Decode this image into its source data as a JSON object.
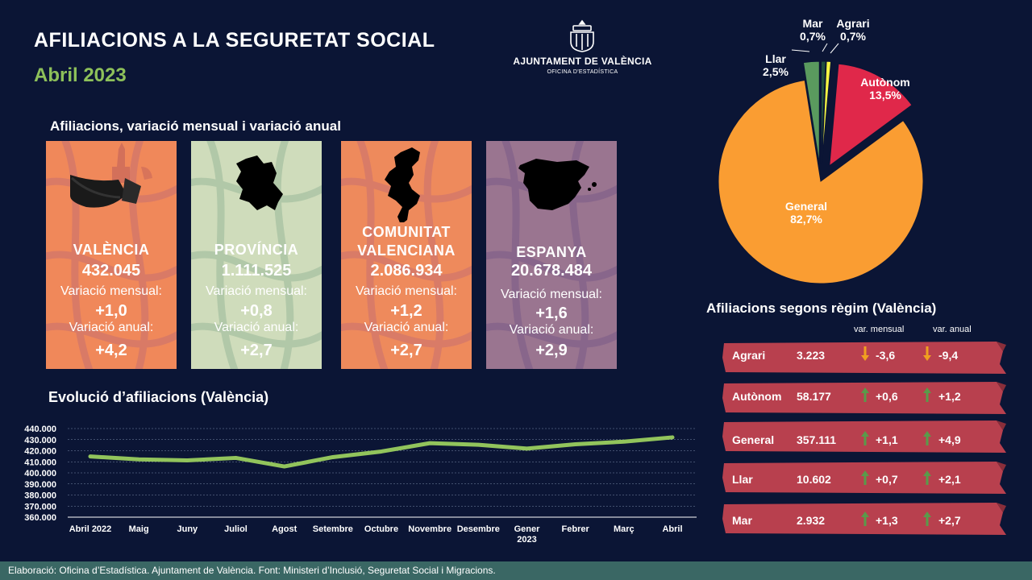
{
  "header": {
    "title": "AFILIACIONS  A LA SEGURETAT SOCIAL",
    "subtitle": "Abril 2023"
  },
  "logo": {
    "line1": "AJUNTAMENT DE VALÈNCIA",
    "line2": "OFICINA D'ESTADÍSTICA",
    "icon": "city-coat-of-arms-icon"
  },
  "cards_section": {
    "title": "Afiliacions, variació mensual i variació anual",
    "monthly_label": "Variació mensual:",
    "annual_label": "Variació anual:",
    "cards": [
      {
        "name": "VALÈNCIA",
        "name2": "",
        "value": "432.045",
        "monthly": "+1,0",
        "annual": "+4,2",
        "color": "#f0885a",
        "icon": "city-skyline-icon"
      },
      {
        "name": "PROVÍNCIA",
        "name2": "",
        "value": "1.111.525",
        "monthly": "+0,8",
        "annual": "+2,7",
        "color": "#cfdcbb",
        "icon": "province-map-icon"
      },
      {
        "name": "COMUNITAT",
        "name2": "VALENCIANA",
        "value": "2.086.934",
        "monthly": "+1,2",
        "annual": "+2,7",
        "color": "#ee8a5c",
        "icon": "region-map-icon"
      },
      {
        "name": "ESPANYA",
        "name2": "",
        "value": "20.678.484",
        "monthly": "+1,6",
        "annual": "+2,9",
        "color": "#9a7590",
        "icon": "spain-map-icon"
      }
    ]
  },
  "evolution": {
    "title": "Evolució d’afiliacions (València)"
  },
  "chart_data": [
    {
      "type": "line",
      "title": "Evolució d’afiliacions (València)",
      "categories": [
        "Abril 2022",
        "Maig",
        "Juny",
        "Juliol",
        "Agost",
        "Setembre",
        "Octubre",
        "Novembre",
        "Desembre",
        "Gener 2023",
        "Febrer",
        "Març",
        "Abril"
      ],
      "category_lines": [
        [
          "Abril 2022"
        ],
        [
          "Maig"
        ],
        [
          "Juny"
        ],
        [
          "Juliol"
        ],
        [
          "Agost"
        ],
        [
          "Setembre"
        ],
        [
          "Octubre"
        ],
        [
          "Novembre"
        ],
        [
          "Desembre"
        ],
        [
          "Gener",
          "2023"
        ],
        [
          "Febrer"
        ],
        [
          "Març"
        ],
        [
          "Abril"
        ]
      ],
      "values": [
        414800,
        412200,
        411300,
        413500,
        405800,
        414200,
        419300,
        426800,
        425400,
        421900,
        425800,
        428200,
        432045
      ],
      "y_ticks": [
        "360.000",
        "370.000",
        "380.000",
        "390.000",
        "400.000",
        "410.000",
        "420.000",
        "430.000",
        "440.000"
      ],
      "ylim": [
        360000,
        440000
      ],
      "grid": true,
      "line_color": "#92c45c"
    },
    {
      "type": "pie",
      "title": "",
      "slices": [
        {
          "label": "Mar",
          "value": 0.7,
          "display": "0,7%",
          "color": "#1f4e3d"
        },
        {
          "label": "Agrari",
          "value": 0.7,
          "display": "0,7%",
          "color": "#f5f542"
        },
        {
          "label": "Autònom",
          "value": 13.5,
          "display": "13,5%",
          "color": "#e0284a"
        },
        {
          "label": "General",
          "value": 82.7,
          "display": "82,7%",
          "color": "#fa9d32"
        },
        {
          "label": "Llar",
          "value": 2.5,
          "display": "2,5%",
          "color": "#5a9a5e"
        }
      ]
    }
  ],
  "regim": {
    "title": "Afiliacions segons règim (València)",
    "col_monthly": "var. mensual",
    "col_annual": "var. anual",
    "rows": [
      {
        "name": "Agrari",
        "value": "3.223",
        "monthly": "-3,6",
        "annual": "-9,4",
        "monthly_dir": "down",
        "annual_dir": "down"
      },
      {
        "name": "Autònom",
        "value": "58.177",
        "monthly": "+0,6",
        "annual": "+1,2",
        "monthly_dir": "up",
        "annual_dir": "up"
      },
      {
        "name": "General",
        "value": "357.111",
        "monthly": "+1,1",
        "annual": "+4,9",
        "monthly_dir": "up",
        "annual_dir": "up"
      },
      {
        "name": "Llar",
        "value": "10.602",
        "monthly": "+0,7",
        "annual": "+2,1",
        "monthly_dir": "up",
        "annual_dir": "up"
      },
      {
        "name": "Mar",
        "value": "2.932",
        "monthly": "+1,3",
        "annual": "+2,7",
        "monthly_dir": "up",
        "annual_dir": "up"
      }
    ],
    "colors": {
      "row_bg": "#b8404e",
      "up": "#5a9a4a",
      "down": "#f0a020"
    }
  },
  "footer": {
    "text": "Elaboració: Oficina d’Estadística.  Ajuntament de València. Font: Ministeri d’Inclusió, Seguretat Social i Migracions."
  }
}
